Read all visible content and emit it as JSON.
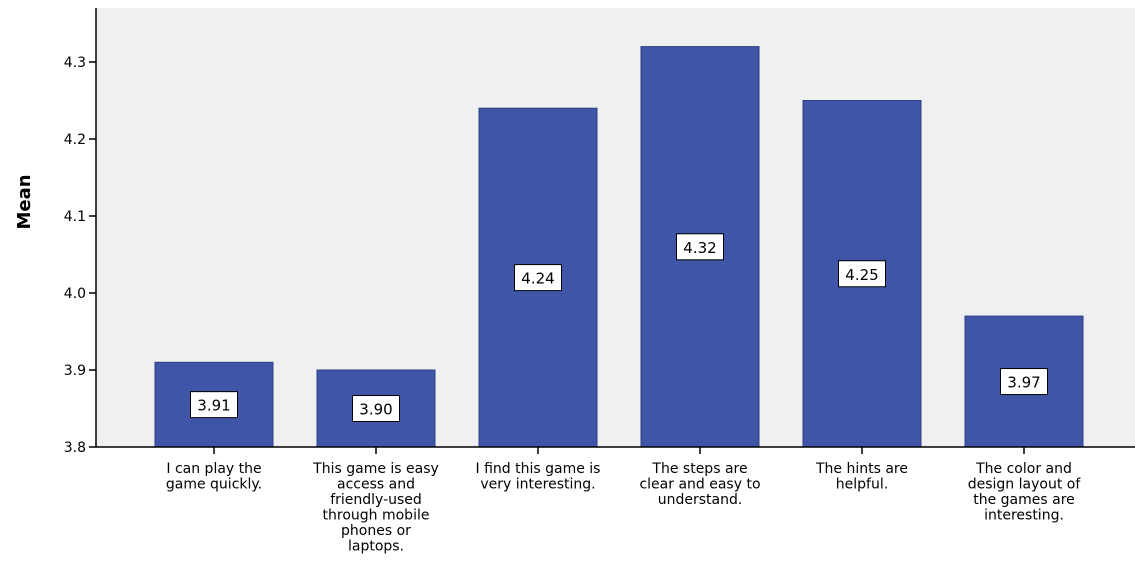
{
  "chart_data": {
    "type": "bar",
    "ylabel": "Mean",
    "ylim": [
      3.8,
      4.34
    ],
    "yticks": [
      "3.8",
      "3.9",
      "4.0",
      "4.1",
      "4.2",
      "4.3"
    ],
    "categories": [
      "I can play the game quickly.",
      "This game is easy access and friendly-used through mobile phones or laptops.",
      "I find this game is very interesting.",
      "The steps are clear and easy to understand.",
      "The hints are helpful.",
      "The color and design layout of the games are interesting."
    ],
    "category_lines": [
      [
        "I can play the",
        "game quickly."
      ],
      [
        "This game is easy",
        "access and",
        "friendly-used",
        "through mobile",
        "phones or",
        "laptops."
      ],
      [
        "I find this game is",
        "very interesting."
      ],
      [
        "The steps are",
        "clear and easy to",
        "understand."
      ],
      [
        "The hints are",
        "helpful."
      ],
      [
        "The color and",
        "design layout of",
        "the games are",
        "interesting."
      ]
    ],
    "values": [
      3.91,
      3.9,
      4.24,
      4.32,
      4.25,
      3.97
    ],
    "data_labels": [
      "3.91",
      "3.90",
      "4.24",
      "4.32",
      "4.25",
      "3.97"
    ],
    "bar_color": "#3f55a8",
    "plot_background": "#f0f0f0",
    "grid": false,
    "legend": "none"
  }
}
